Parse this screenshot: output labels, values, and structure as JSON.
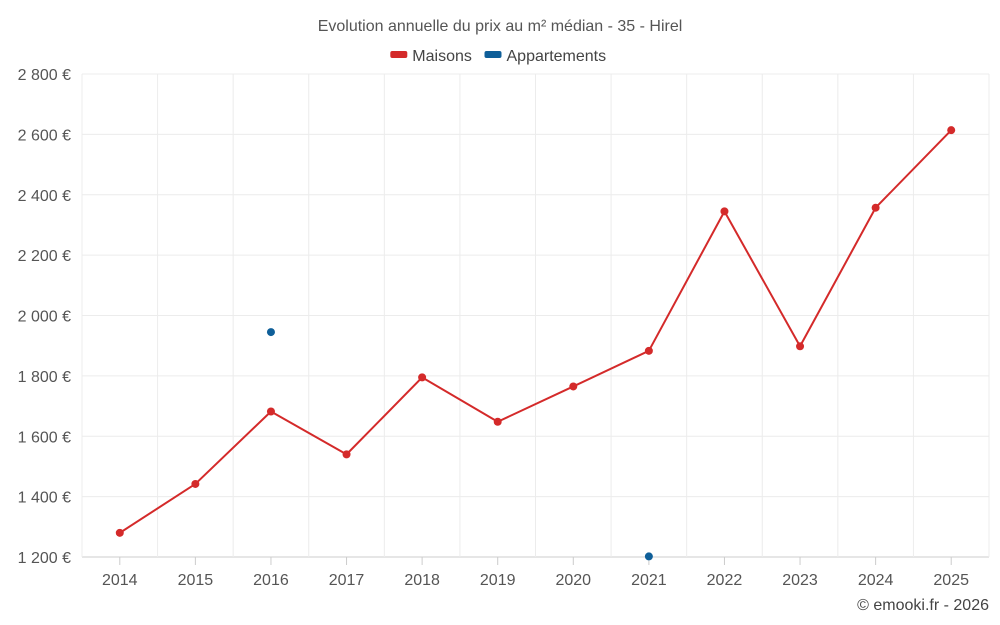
{
  "chart_data": {
    "type": "line",
    "title": "Evolution annuelle du prix au m² médian - 35 - Hirel",
    "categories": [
      "2014",
      "2015",
      "2016",
      "2017",
      "2018",
      "2019",
      "2020",
      "2021",
      "2022",
      "2023",
      "2024",
      "2025"
    ],
    "y_ticks": [
      1200,
      1400,
      1600,
      1800,
      2000,
      2200,
      2400,
      2600,
      2800
    ],
    "y_tick_labels": [
      "1 200 €",
      "1 400 €",
      "1 600 €",
      "1 800 €",
      "2 000 €",
      "2 200 €",
      "2 400 €",
      "2 600 €",
      "2 800 €"
    ],
    "ylim": [
      1200,
      2800
    ],
    "xlabel": "",
    "ylabel": "",
    "grid": true,
    "legend_position": "top-center",
    "series": [
      {
        "name": "Maisons",
        "color": "#d42a2a",
        "line": true,
        "values": [
          1280,
          1442,
          1682,
          1540,
          1795,
          1648,
          1765,
          1883,
          2345,
          1898,
          2357,
          2614
        ]
      },
      {
        "name": "Appartements",
        "color": "#0f5f99",
        "line": false,
        "values": [
          null,
          null,
          1945,
          null,
          null,
          null,
          null,
          1202,
          null,
          null,
          null,
          null
        ]
      }
    ],
    "credit": "© emooki.fr - 2026"
  }
}
